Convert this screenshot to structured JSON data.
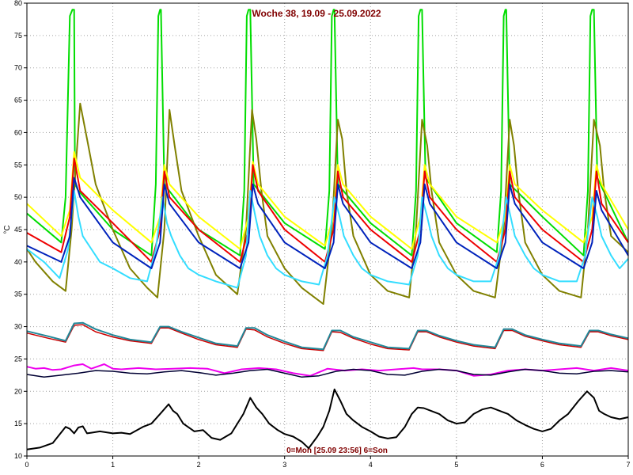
{
  "chart_data": {
    "type": "line",
    "title": "Woche 38, 19.09 - 25.09.2022",
    "footer": "0=Mon [25.09 23:56] 6=Son",
    "ylabel": "°C",
    "xlabel": "",
    "xlim": [
      0,
      7
    ],
    "ylim": [
      10,
      80
    ],
    "grid": true,
    "background": "#ffffff",
    "grid_color": "#a0a0a0",
    "xticks": [
      0,
      1,
      2,
      3,
      4,
      5,
      6,
      7
    ],
    "yticks": [
      10,
      15,
      20,
      25,
      30,
      35,
      40,
      45,
      50,
      55,
      60,
      65,
      70,
      75,
      80
    ],
    "series": [
      {
        "color": "#00dd00",
        "width": 2,
        "x": [
          0,
          0.4,
          0.45,
          0.5,
          0.53,
          0.55,
          0.56,
          0.6,
          1.0,
          1.45,
          1.5,
          1.53,
          1.55,
          1.56,
          1.6,
          2.0,
          2.48,
          2.53,
          2.56,
          2.58,
          2.6,
          2.64,
          3.0,
          3.47,
          3.52,
          3.55,
          3.57,
          3.58,
          3.62,
          4.0,
          4.48,
          4.53,
          4.56,
          4.58,
          4.6,
          4.64,
          5.0,
          5.47,
          5.52,
          5.55,
          5.57,
          5.58,
          5.62,
          6.0,
          6.48,
          6.53,
          6.56,
          6.58,
          6.6,
          6.64,
          7.0
        ],
        "y": [
          47.5,
          43,
          50,
          78,
          79,
          79,
          52,
          51,
          45,
          41,
          52,
          78,
          79,
          79,
          52,
          45,
          41,
          51,
          78,
          79,
          79,
          52,
          46,
          42,
          51,
          78,
          79,
          79,
          52,
          46,
          41,
          51,
          78,
          79,
          79,
          53,
          46,
          41.5,
          51,
          78,
          79,
          79,
          52,
          47,
          41,
          51,
          78,
          79,
          79,
          53,
          43
        ]
      },
      {
        "color": "#808000",
        "width": 2,
        "x": [
          0,
          0.1,
          0.3,
          0.45,
          0.52,
          0.57,
          0.62,
          0.7,
          0.8,
          1.0,
          1.2,
          1.4,
          1.52,
          1.6,
          1.66,
          1.72,
          1.8,
          2.0,
          2.2,
          2.45,
          2.55,
          2.62,
          2.67,
          2.73,
          2.8,
          3.0,
          3.2,
          3.45,
          3.55,
          3.62,
          3.67,
          3.72,
          3.8,
          4.0,
          4.2,
          4.45,
          4.53,
          4.6,
          4.66,
          4.71,
          4.8,
          5.0,
          5.2,
          5.45,
          5.55,
          5.62,
          5.67,
          5.72,
          5.8,
          6.0,
          6.2,
          6.45,
          6.53,
          6.6,
          6.67,
          6.72,
          6.8,
          7.0
        ],
        "y": [
          42,
          40,
          37,
          35.5,
          45,
          55,
          64.5,
          59,
          52,
          45,
          39,
          36,
          34.5,
          45,
          63.5,
          58,
          51,
          44,
          38,
          35,
          45,
          63.5,
          59,
          51,
          44,
          39,
          36,
          33.5,
          45,
          62,
          59,
          51,
          44,
          38,
          35.5,
          34.5,
          45,
          62,
          58,
          51,
          43,
          38,
          35.5,
          34.5,
          45,
          62,
          58,
          51,
          43,
          38,
          35.5,
          34.5,
          45,
          62,
          58,
          51,
          44,
          41.5
        ]
      },
      {
        "color": "#ffff00",
        "width": 2,
        "x": [
          0,
          0.4,
          0.5,
          0.55,
          0.62,
          1.0,
          1.45,
          1.55,
          1.6,
          1.66,
          2.0,
          2.48,
          2.58,
          2.63,
          2.69,
          3.0,
          3.47,
          3.57,
          3.62,
          3.68,
          4.0,
          4.48,
          4.58,
          4.63,
          4.69,
          5.0,
          5.47,
          5.57,
          5.62,
          5.68,
          6.0,
          6.48,
          6.58,
          6.63,
          6.69,
          7.0
        ],
        "y": [
          49,
          44,
          48,
          57,
          53,
          48,
          43,
          47,
          55,
          52,
          47,
          42,
          47,
          55.5,
          52,
          47,
          42.5,
          47,
          55,
          52,
          47,
          42,
          47,
          55,
          52,
          47,
          43,
          47,
          55,
          52,
          48,
          43,
          47,
          55,
          52,
          45
        ]
      },
      {
        "color": "#ee0000",
        "width": 2,
        "x": [
          0,
          0.4,
          0.5,
          0.55,
          0.62,
          1.0,
          1.45,
          1.55,
          1.6,
          1.66,
          2.0,
          2.48,
          2.58,
          2.63,
          2.69,
          3.0,
          3.47,
          3.57,
          3.62,
          3.68,
          4.0,
          4.48,
          4.58,
          4.63,
          4.69,
          5.0,
          5.47,
          5.57,
          5.62,
          5.68,
          6.0,
          6.48,
          6.58,
          6.63,
          6.69,
          7.0
        ],
        "y": [
          44.5,
          41.5,
          47,
          56,
          51,
          46,
          40,
          45,
          54,
          50,
          45,
          40,
          45,
          55,
          51,
          45,
          40,
          45,
          54,
          50,
          45,
          40,
          45,
          54,
          50,
          45,
          40,
          45,
          54,
          50,
          45,
          40,
          45,
          54,
          49,
          43
        ]
      },
      {
        "color": "#33ddff",
        "width": 2,
        "x": [
          0,
          0.2,
          0.38,
          0.48,
          0.55,
          0.6,
          0.65,
          0.75,
          0.85,
          1.0,
          1.2,
          1.4,
          1.5,
          1.58,
          1.63,
          1.68,
          1.78,
          1.88,
          2.0,
          2.2,
          2.45,
          2.55,
          2.6,
          2.66,
          2.71,
          2.8,
          2.9,
          3.0,
          3.2,
          3.4,
          3.5,
          3.58,
          3.64,
          3.69,
          3.8,
          3.9,
          4.0,
          4.2,
          4.45,
          4.55,
          4.6,
          4.66,
          4.71,
          4.8,
          4.9,
          5.0,
          5.2,
          5.4,
          5.5,
          5.58,
          5.63,
          5.68,
          5.8,
          5.9,
          6.0,
          6.2,
          6.4,
          6.5,
          6.58,
          6.64,
          6.69,
          6.8,
          6.9,
          7.0
        ],
        "y": [
          42,
          40,
          37.5,
          42,
          51,
          47,
          44,
          42,
          40,
          39,
          37.5,
          37,
          42,
          50,
          46,
          44,
          41,
          39,
          38,
          37,
          36,
          41,
          51,
          47,
          44,
          41,
          39,
          38,
          37,
          36.5,
          41,
          50,
          47,
          44,
          41,
          39,
          38,
          37,
          36.5,
          41,
          50,
          47,
          44,
          41,
          39,
          38,
          37,
          37,
          41,
          50,
          47,
          44,
          41,
          39,
          38,
          37,
          37,
          41,
          50,
          47,
          44,
          41,
          39,
          40.5
        ]
      },
      {
        "color": "#0022bb",
        "width": 2,
        "x": [
          0,
          0.4,
          0.5,
          0.55,
          0.62,
          1.0,
          1.45,
          1.55,
          1.6,
          1.66,
          2.0,
          2.48,
          2.58,
          2.63,
          2.69,
          3.0,
          3.47,
          3.57,
          3.62,
          3.68,
          4.0,
          4.48,
          4.58,
          4.63,
          4.69,
          5.0,
          5.47,
          5.57,
          5.62,
          5.68,
          6.0,
          6.48,
          6.58,
          6.63,
          6.69,
          7.0
        ],
        "y": [
          42.5,
          40,
          44,
          53,
          50,
          43,
          39,
          43,
          52,
          49,
          43,
          39,
          43,
          52,
          49,
          43,
          39,
          43,
          52,
          49,
          43,
          39,
          43,
          52,
          49,
          43,
          39,
          43,
          52,
          49,
          43,
          39,
          43,
          51,
          48,
          41
        ]
      },
      {
        "color": "#cc0000",
        "width": 1.5,
        "x": [
          0,
          0.25,
          0.45,
          0.55,
          0.65,
          0.8,
          1.0,
          1.2,
          1.45,
          1.55,
          1.65,
          1.8,
          2.0,
          2.2,
          2.45,
          2.55,
          2.65,
          2.8,
          3.0,
          3.2,
          3.45,
          3.55,
          3.65,
          3.8,
          4.0,
          4.2,
          4.45,
          4.55,
          4.65,
          4.8,
          5.0,
          5.2,
          5.45,
          5.55,
          5.65,
          5.8,
          6.0,
          6.2,
          6.45,
          6.55,
          6.65,
          6.8,
          7.0
        ],
        "y": [
          29,
          28.2,
          27.6,
          30.2,
          30.3,
          29.2,
          28.4,
          27.8,
          27.4,
          29.8,
          29.8,
          29,
          28,
          27.2,
          26.8,
          29.6,
          29.5,
          28.4,
          27.4,
          26.6,
          26.3,
          29.2,
          29.1,
          28.2,
          27.3,
          26.6,
          26.4,
          29.2,
          29.2,
          28.4,
          27.6,
          27,
          26.6,
          29.4,
          29.4,
          28.5,
          27.8,
          27.2,
          26.8,
          29.2,
          29.2,
          28.6,
          28
        ]
      },
      {
        "color": "#228899",
        "width": 2,
        "x": [
          0,
          0.25,
          0.45,
          0.55,
          0.65,
          0.8,
          1.0,
          1.2,
          1.45,
          1.55,
          1.65,
          1.8,
          2.0,
          2.2,
          2.45,
          2.55,
          2.65,
          2.8,
          3.0,
          3.2,
          3.45,
          3.55,
          3.65,
          3.8,
          4.0,
          4.2,
          4.45,
          4.55,
          4.65,
          4.8,
          5.0,
          5.2,
          5.45,
          5.55,
          5.65,
          5.8,
          6.0,
          6.2,
          6.45,
          6.55,
          6.65,
          6.8,
          7.0
        ],
        "y": [
          29.3,
          28.5,
          27.8,
          30.5,
          30.6,
          29.6,
          28.7,
          28,
          27.6,
          30,
          30,
          29.2,
          28.3,
          27.4,
          27,
          29.8,
          29.8,
          28.7,
          27.7,
          26.8,
          26.5,
          29.4,
          29.4,
          28.4,
          27.6,
          26.8,
          26.6,
          29.4,
          29.4,
          28.6,
          27.8,
          27.2,
          26.8,
          29.6,
          29.6,
          28.7,
          28,
          27.4,
          27,
          29.4,
          29.4,
          28.8,
          28.2
        ]
      },
      {
        "color": "#ee00ee",
        "width": 2,
        "x": [
          0,
          0.1,
          0.2,
          0.3,
          0.4,
          0.55,
          0.65,
          0.75,
          0.9,
          1.0,
          1.1,
          1.3,
          1.5,
          1.7,
          1.9,
          2.1,
          2.3,
          2.5,
          2.7,
          2.9,
          3.1,
          3.3,
          3.5,
          3.7,
          3.9,
          4.1,
          4.3,
          4.5,
          4.6,
          4.8,
          5.0,
          5.2,
          5.4,
          5.6,
          5.8,
          6.0,
          6.2,
          6.4,
          6.6,
          6.8,
          7.0
        ],
        "y": [
          23.8,
          23.5,
          23.6,
          23.3,
          23.4,
          24,
          24.2,
          23.5,
          24.2,
          23.5,
          23.4,
          23.6,
          23.4,
          23.5,
          23.6,
          23.5,
          22.8,
          23.4,
          23.6,
          23.4,
          22.8,
          22.4,
          23.5,
          23.2,
          23.4,
          23.2,
          23.4,
          23.6,
          23.4,
          23.4,
          23.2,
          22.4,
          22.6,
          23.2,
          23.4,
          23.2,
          23.4,
          23.6,
          23.2,
          23.6,
          23.2
        ]
      },
      {
        "color": "#000033",
        "width": 1.5,
        "x": [
          0,
          0.2,
          0.4,
          0.6,
          0.8,
          1.0,
          1.2,
          1.4,
          1.6,
          1.8,
          2.0,
          2.2,
          2.4,
          2.6,
          2.8,
          3.0,
          3.2,
          3.4,
          3.6,
          3.8,
          4.0,
          4.2,
          4.4,
          4.6,
          4.8,
          5.0,
          5.2,
          5.4,
          5.6,
          5.8,
          6.0,
          6.2,
          6.4,
          6.6,
          6.8,
          7.0
        ],
        "y": [
          22.6,
          22.2,
          22.5,
          22.8,
          23.2,
          23.1,
          22.8,
          22.7,
          23,
          23.2,
          22.9,
          22.5,
          22.8,
          23.2,
          23.4,
          22.8,
          22.2,
          22.4,
          23.1,
          23.4,
          23.2,
          22.6,
          22.5,
          23.1,
          23.4,
          23.2,
          22.6,
          22.5,
          23,
          23.4,
          23.2,
          22.8,
          22.7,
          23.1,
          23.2,
          23
        ]
      },
      {
        "color": "#000000",
        "width": 2,
        "x": [
          0,
          0.15,
          0.3,
          0.45,
          0.5,
          0.55,
          0.6,
          0.65,
          0.7,
          0.75,
          0.85,
          1.0,
          1.1,
          1.2,
          1.35,
          1.45,
          1.55,
          1.65,
          1.7,
          1.75,
          1.82,
          1.95,
          2.05,
          2.15,
          2.25,
          2.38,
          2.45,
          2.52,
          2.6,
          2.67,
          2.74,
          2.82,
          2.92,
          3.0,
          3.1,
          3.2,
          3.28,
          3.38,
          3.45,
          3.52,
          3.58,
          3.65,
          3.72,
          3.8,
          3.9,
          4.0,
          4.1,
          4.2,
          4.3,
          4.4,
          4.48,
          4.55,
          4.62,
          4.7,
          4.8,
          4.9,
          5.0,
          5.1,
          5.2,
          5.3,
          5.4,
          5.5,
          5.6,
          5.7,
          5.8,
          5.9,
          6.0,
          6.1,
          6.2,
          6.3,
          6.42,
          6.52,
          6.6,
          6.66,
          6.72,
          6.8,
          6.9,
          7.0
        ],
        "y": [
          11,
          11.3,
          12,
          14.5,
          14.2,
          13.5,
          14.4,
          14.6,
          13.5,
          13.6,
          13.8,
          13.5,
          13.6,
          13.4,
          14.5,
          15,
          16.5,
          18,
          17,
          16.5,
          15,
          13.8,
          14,
          12.8,
          12.5,
          13.5,
          15,
          16.5,
          19,
          17.5,
          16.5,
          15,
          14,
          13.4,
          13,
          12.2,
          11.2,
          13,
          14.5,
          17,
          20.3,
          18.5,
          16.5,
          15.5,
          14.5,
          13.8,
          13,
          12.7,
          12.9,
          14.5,
          16.5,
          17.5,
          17.4,
          17,
          16.5,
          15.5,
          15,
          15.2,
          16.5,
          17.2,
          17.5,
          17,
          16.5,
          15.5,
          14.8,
          14.2,
          13.8,
          14.2,
          15.5,
          16.5,
          18.5,
          20,
          19,
          17,
          16.5,
          16,
          15.7,
          16
        ]
      }
    ]
  }
}
